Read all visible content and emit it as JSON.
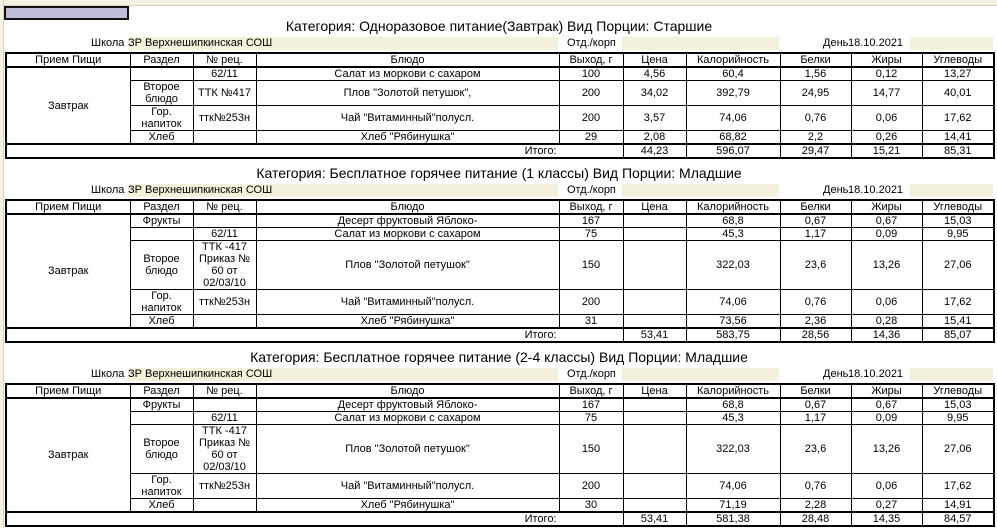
{
  "columns": [
    "Прием Пищи",
    "Раздел",
    "№ рец.",
    "Блюдо",
    "Выход, г",
    "Цена",
    "Калорийность",
    "Белки",
    "Жиры",
    "Углеводы"
  ],
  "labels": {
    "school": "Школа",
    "dept": "Отд./корп",
    "day": "День",
    "total": "Итого:"
  },
  "sections": [
    {
      "title": "Категория: Одноразовое питание(Завтрак) Вид Порции: Старшие",
      "school": "ЗР Верхнешипкинская СОШ",
      "dept": "",
      "date": "18.10.2021",
      "meal": "Завтрак",
      "rows": [
        {
          "section": "",
          "recipe": "62/11",
          "dish": "Салат из моркови с сахаром",
          "yield": "100",
          "price": "4,56",
          "kcal": "60,4",
          "protein": "1,56",
          "fat": "0,12",
          "carbs": "13,27"
        },
        {
          "section": "Второе блюдо",
          "recipe": "ТТК №417",
          "dish": "Плов \"Золотой петушок\",",
          "yield": "200",
          "price": "34,02",
          "kcal": "392,79",
          "protein": "24,95",
          "fat": "14,77",
          "carbs": "40,01"
        },
        {
          "section": "Гор. напиток",
          "recipe": "ттк№253н",
          "dish": "Чай \"Витаминный\"полусл.",
          "yield": "200",
          "price": "3,57",
          "kcal": "74,06",
          "protein": "0,76",
          "fat": "0,06",
          "carbs": "17,62"
        },
        {
          "section": "Хлеб",
          "recipe": "",
          "dish": "Хлеб \"Рябинушка\"",
          "yield": "29",
          "price": "2,08",
          "kcal": "68,82",
          "protein": "2,2",
          "fat": "0,26",
          "carbs": "14,41"
        }
      ],
      "total": {
        "price": "44,23",
        "kcal": "596,07",
        "protein": "29,47",
        "fat": "15,21",
        "carbs": "85,31"
      }
    },
    {
      "title": "Категория: Бесплатное горячее питание (1 классы) Вид Порции: Младшие",
      "school": "ЗР Верхнешипкинская СОШ",
      "dept": "",
      "date": "18.10.2021",
      "meal": "Завтрак",
      "rows": [
        {
          "section": "Фрукты",
          "recipe": "",
          "dish": "Десерт фруктовый Яблоко-",
          "yield": "167",
          "price": "",
          "kcal": "68,8",
          "protein": "0,67",
          "fat": "0,67",
          "carbs": "15,03"
        },
        {
          "section": "",
          "recipe": "62/11",
          "dish": "Салат из моркови с сахаром",
          "yield": "75",
          "price": "",
          "kcal": "45,3",
          "protein": "1,17",
          "fat": "0,09",
          "carbs": "9,95"
        },
        {
          "section": "Второе блюдо",
          "recipe": "ТТК -417 Приказ № 60 от 02/03/10",
          "dish": "Плов \"Золотой петушок\"",
          "yield": "150",
          "price": "",
          "kcal": "322,03",
          "protein": "23,6",
          "fat": "13,26",
          "carbs": "27,06"
        },
        {
          "section": "Гор. напиток",
          "recipe": "ттк№253н",
          "dish": "Чай \"Витаминный\"полусл.",
          "yield": "200",
          "price": "",
          "kcal": "74,06",
          "protein": "0,76",
          "fat": "0,06",
          "carbs": "17,62"
        },
        {
          "section": "Хлеб",
          "recipe": "",
          "dish": "Хлеб \"Рябинушка\"",
          "yield": "31",
          "price": "",
          "kcal": "73,56",
          "protein": "2,36",
          "fat": "0,28",
          "carbs": "15,41"
        }
      ],
      "total": {
        "price": "53,41",
        "kcal": "583,75",
        "protein": "28,56",
        "fat": "14,36",
        "carbs": "85,07"
      }
    },
    {
      "title": "Категория: Бесплатное горячее питание (2-4 классы) Вид Порции: Младшие",
      "school": "ЗР Верхнешипкинская СОШ",
      "dept": "",
      "date": "18.10.2021",
      "meal": "Завтрак",
      "rows": [
        {
          "section": "Фрукты",
          "recipe": "",
          "dish": "Десерт фруктовый Яблоко-",
          "yield": "167",
          "price": "",
          "kcal": "68,8",
          "protein": "0,67",
          "fat": "0,67",
          "carbs": "15,03"
        },
        {
          "section": "",
          "recipe": "62/11",
          "dish": "Салат из моркови с сахаром",
          "yield": "75",
          "price": "",
          "kcal": "45,3",
          "protein": "1,17",
          "fat": "0,09",
          "carbs": "9,95"
        },
        {
          "section": "Второе блюдо",
          "recipe": "ТТК -417 Приказ № 60 от 02/03/10",
          "dish": "Плов \"Золотой петушок\"",
          "yield": "150",
          "price": "",
          "kcal": "322,03",
          "protein": "23,6",
          "fat": "13,26",
          "carbs": "27,06"
        },
        {
          "section": "Гор. напиток",
          "recipe": "ттк№253н",
          "dish": "Чай \"Витаминный\"полусл.",
          "yield": "200",
          "price": "",
          "kcal": "74,06",
          "protein": "0,76",
          "fat": "0,06",
          "carbs": "17,62"
        },
        {
          "section": "Хлеб",
          "recipe": "",
          "dish": "Хлеб \"Рябинушка\"",
          "yield": "30",
          "price": "",
          "kcal": "71,19",
          "protein": "2,28",
          "fat": "0,27",
          "carbs": "14,91"
        }
      ],
      "total": {
        "price": "53,41",
        "kcal": "581,38",
        "protein": "28,48",
        "fat": "14,35",
        "carbs": "84,57"
      }
    }
  ]
}
